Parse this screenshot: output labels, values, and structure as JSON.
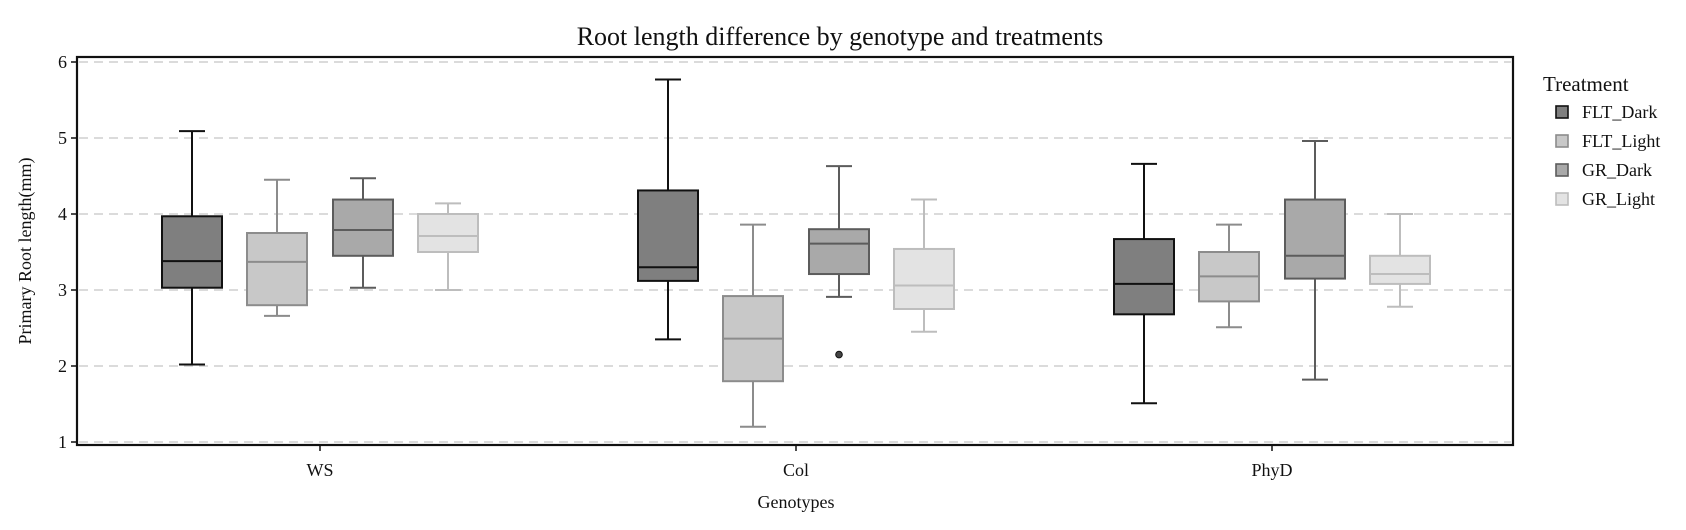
{
  "chart_data": {
    "type": "boxplot",
    "title": "Root length difference by genotype and treatments",
    "xlabel": "Genotypes",
    "ylabel": "Primary Root length(mm)",
    "ylim": [
      0.94,
      6.06
    ],
    "yticks": [
      1,
      2,
      3,
      4,
      5,
      6
    ],
    "grid": "horizontal dashed",
    "legend_title": "Treatment",
    "legend_position": "right",
    "categories": [
      "WS",
      "Col",
      "PhyD"
    ],
    "series": [
      {
        "name": "FLT_Dark",
        "fill": "#7f7f7f",
        "stroke": "#111111",
        "boxes": [
          {
            "min": 2.02,
            "q1": 3.03,
            "median": 3.38,
            "q3": 3.97,
            "max": 5.09,
            "outliers": []
          },
          {
            "min": 2.35,
            "q1": 3.12,
            "median": 3.3,
            "q3": 4.31,
            "max": 5.77,
            "outliers": []
          },
          {
            "min": 1.51,
            "q1": 2.68,
            "median": 3.08,
            "q3": 3.67,
            "max": 4.66,
            "outliers": []
          }
        ]
      },
      {
        "name": "FLT_Light",
        "fill": "#c8c8c8",
        "stroke": "#8c8c8c",
        "boxes": [
          {
            "min": 2.66,
            "q1": 2.8,
            "median": 3.37,
            "q3": 3.75,
            "max": 4.45,
            "outliers": []
          },
          {
            "min": 1.2,
            "q1": 1.8,
            "median": 2.36,
            "q3": 2.92,
            "max": 3.86,
            "outliers": []
          },
          {
            "min": 2.51,
            "q1": 2.85,
            "median": 3.18,
            "q3": 3.5,
            "max": 3.86,
            "outliers": []
          }
        ]
      },
      {
        "name": "GR_Dark",
        "fill": "#a9a9a9",
        "stroke": "#5c5c5c",
        "boxes": [
          {
            "min": 3.03,
            "q1": 3.45,
            "median": 3.79,
            "q3": 4.19,
            "max": 4.47,
            "outliers": []
          },
          {
            "min": 2.91,
            "q1": 3.21,
            "median": 3.61,
            "q3": 3.8,
            "max": 4.63,
            "outliers": [
              2.15
            ]
          },
          {
            "min": 1.82,
            "q1": 3.15,
            "median": 3.45,
            "q3": 4.19,
            "max": 4.96,
            "outliers": []
          }
        ]
      },
      {
        "name": "GR_Light",
        "fill": "#e3e3e3",
        "stroke": "#bdbdbd",
        "boxes": [
          {
            "min": 3.0,
            "q1": 3.5,
            "median": 3.71,
            "q3": 4.0,
            "max": 4.14,
            "outliers": []
          },
          {
            "min": 2.45,
            "q1": 2.75,
            "median": 3.06,
            "q3": 3.54,
            "max": 4.19,
            "outliers": []
          },
          {
            "min": 2.78,
            "q1": 3.08,
            "median": 3.21,
            "q3": 3.45,
            "max": 4.0,
            "outliers": []
          }
        ]
      }
    ]
  }
}
